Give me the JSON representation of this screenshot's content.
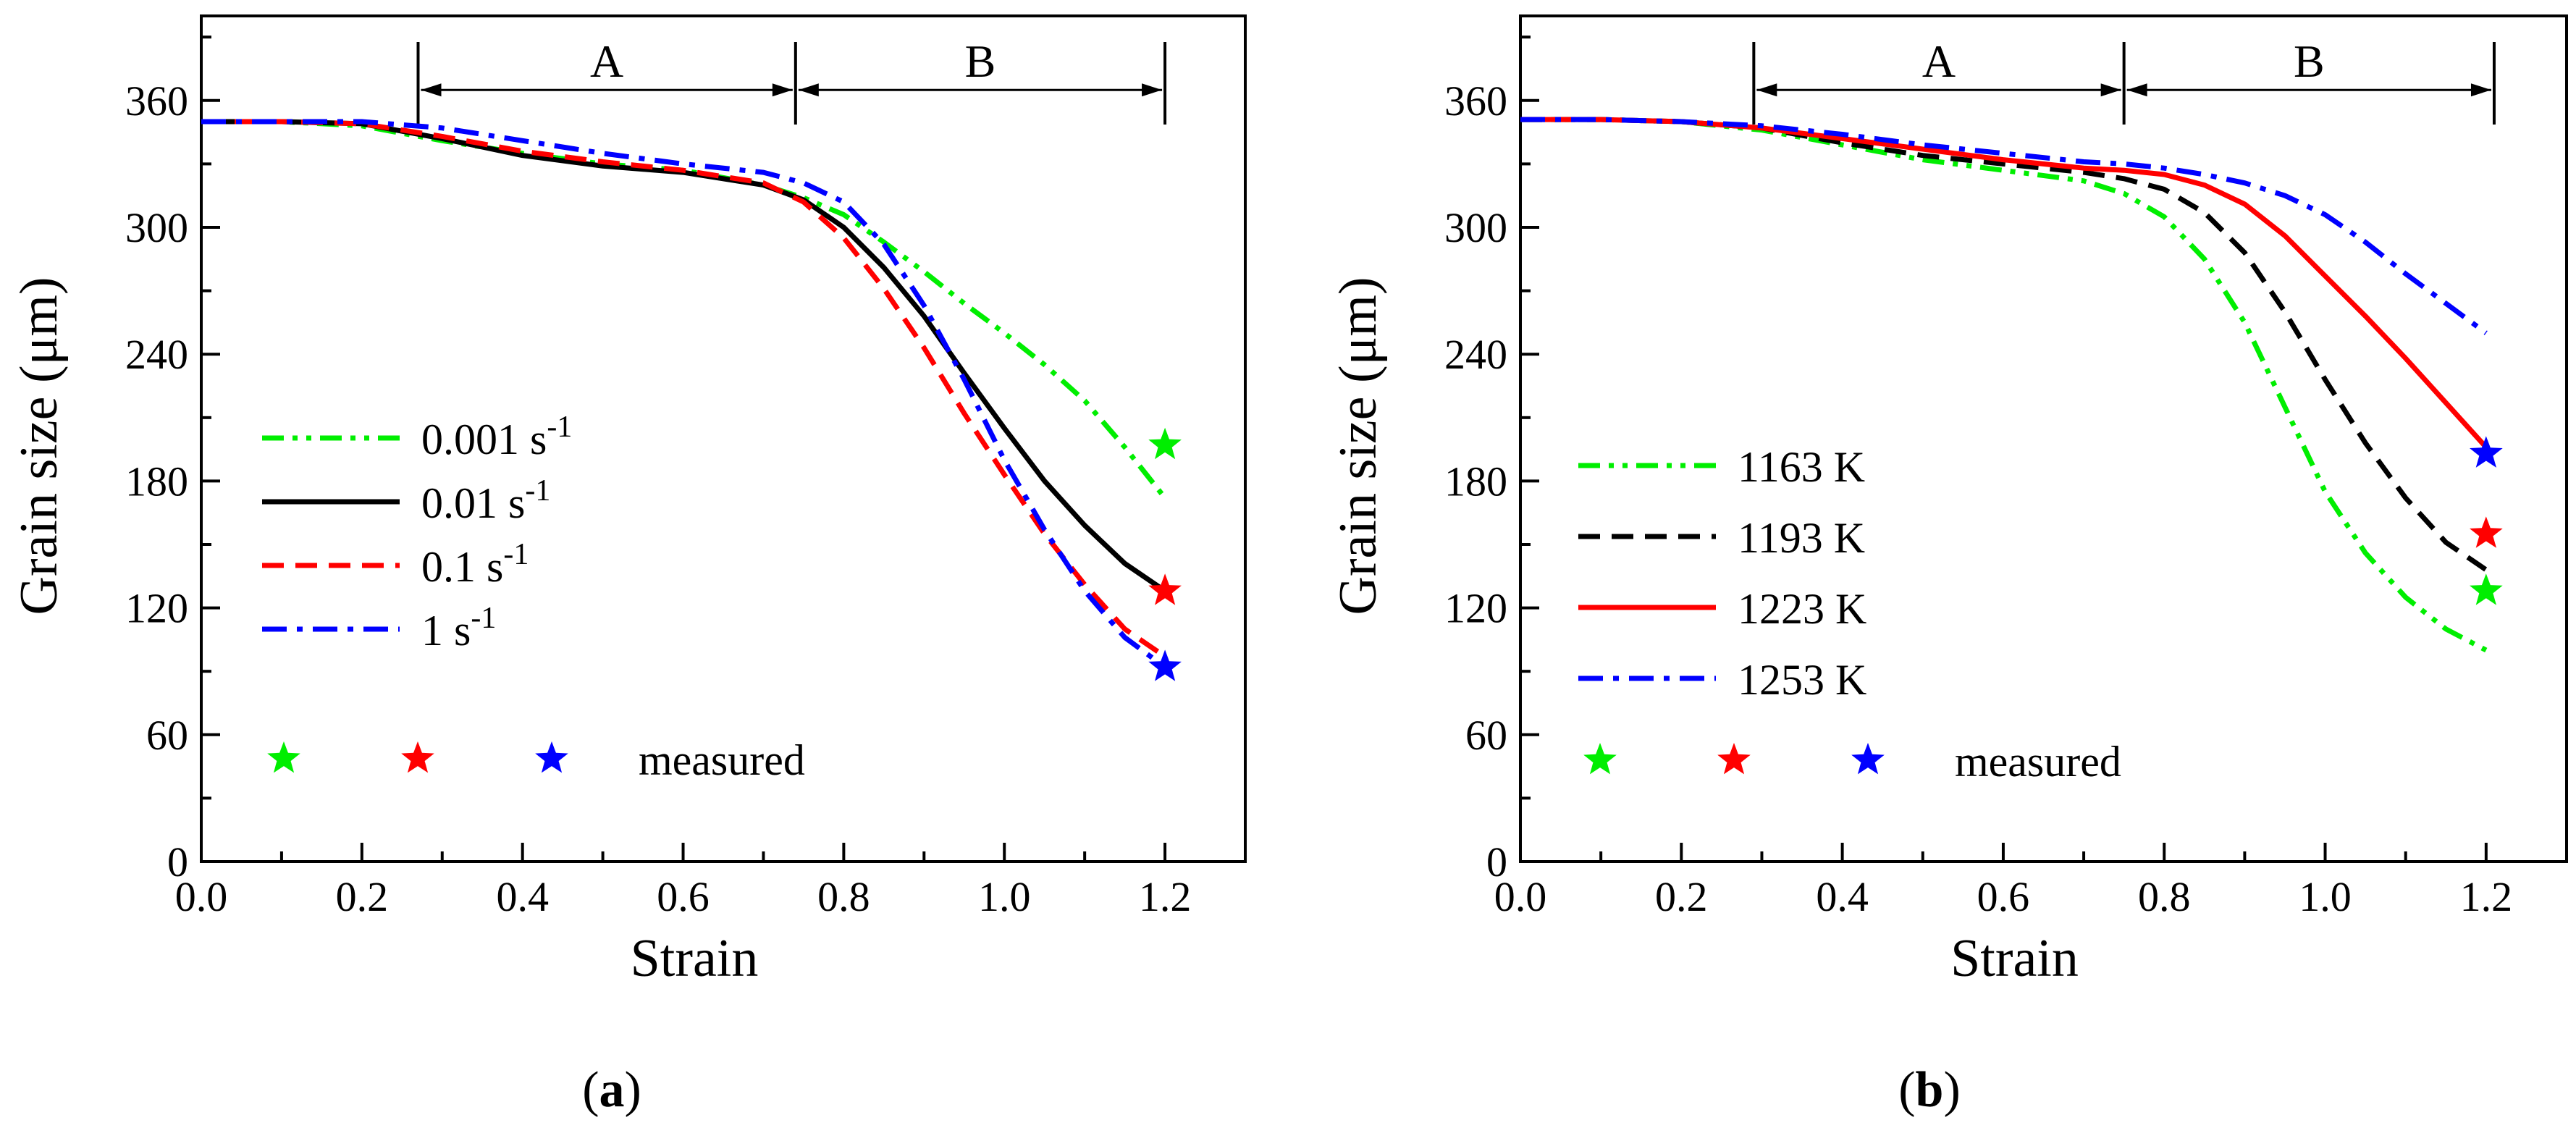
{
  "chart_data": [
    {
      "type": "line",
      "panel": "a",
      "caption": {
        "open": "(",
        "letter": "a",
        "close": ")"
      },
      "xlabel": "Strain",
      "ylabel": "Grain size (μm)",
      "xlim": [
        0.0,
        1.3
      ],
      "ylim": [
        0,
        400
      ],
      "xticks": [
        0.0,
        0.2,
        0.4,
        0.6,
        0.8,
        1.0,
        1.2
      ],
      "xtick_labels": [
        "0.0",
        "0.2",
        "0.4",
        "0.6",
        "0.8",
        "1.0",
        "1.2"
      ],
      "yticks": [
        0,
        60,
        120,
        180,
        240,
        300,
        360
      ],
      "ytick_labels": [
        "0",
        "60",
        "120",
        "180",
        "240",
        "300",
        "360"
      ],
      "regions": [
        {
          "label": "A",
          "start": 0.27,
          "end": 0.74
        },
        {
          "label": "B",
          "start": 0.74,
          "end": 1.2
        }
      ],
      "region_line_y": 365,
      "series": [
        {
          "name": "0.001 s",
          "sup": "-1",
          "color": "#00ee00",
          "dash": "dashdotdot",
          "x": [
            0,
            0.1,
            0.2,
            0.3,
            0.4,
            0.5,
            0.6,
            0.7,
            0.75,
            0.8,
            0.85,
            0.9,
            0.95,
            1.0,
            1.05,
            1.1,
            1.15,
            1.2
          ],
          "y": [
            350,
            350,
            348,
            341,
            335,
            330,
            327,
            320,
            314,
            306,
            293,
            279,
            264,
            250,
            235,
            218,
            196,
            172
          ]
        },
        {
          "name": "0.01 s",
          "sup": "-1",
          "color": "#000000",
          "dash": "solid",
          "x": [
            0,
            0.1,
            0.2,
            0.3,
            0.4,
            0.5,
            0.6,
            0.7,
            0.75,
            0.8,
            0.85,
            0.9,
            0.95,
            1.0,
            1.05,
            1.1,
            1.15,
            1.2
          ],
          "y": [
            350,
            350,
            349,
            342,
            334,
            329,
            326,
            320,
            313,
            300,
            281,
            258,
            231,
            205,
            180,
            159,
            141,
            128
          ]
        },
        {
          "name": "0.1 s",
          "sup": "-1",
          "color": "#ff0000",
          "dash": "dashed",
          "x": [
            0,
            0.1,
            0.2,
            0.3,
            0.4,
            0.5,
            0.6,
            0.7,
            0.75,
            0.8,
            0.85,
            0.9,
            0.95,
            1.0,
            1.05,
            1.1,
            1.15,
            1.2
          ],
          "y": [
            350,
            350,
            349,
            343,
            336,
            331,
            327,
            321,
            312,
            295,
            271,
            243,
            212,
            183,
            155,
            131,
            110,
            97
          ]
        },
        {
          "name": "1 s",
          "sup": "-1",
          "color": "#0000ff",
          "dash": "dashdot",
          "x": [
            0,
            0.1,
            0.2,
            0.3,
            0.4,
            0.5,
            0.6,
            0.7,
            0.75,
            0.8,
            0.85,
            0.9,
            0.95,
            1.0,
            1.05,
            1.1,
            1.15,
            1.2
          ],
          "y": [
            350,
            350,
            350,
            347,
            341,
            335,
            330,
            326,
            321,
            312,
            292,
            263,
            228,
            190,
            157,
            128,
            106,
            92
          ]
        }
      ],
      "measured": {
        "label": "measured",
        "points": [
          {
            "x": 1.2,
            "y": 197,
            "color": "#00ee00"
          },
          {
            "x": 1.2,
            "y": 128,
            "color": "#ff0000"
          },
          {
            "x": 1.2,
            "y": 92,
            "color": "#0000ff"
          }
        ]
      }
    },
    {
      "type": "line",
      "panel": "b",
      "caption": {
        "open": "(",
        "letter": "b",
        "close": ")"
      },
      "xlabel": "Strain",
      "ylabel": "Grain size (μm)",
      "xlim": [
        0.0,
        1.3
      ],
      "ylim": [
        0,
        400
      ],
      "xticks": [
        0.0,
        0.2,
        0.4,
        0.6,
        0.8,
        1.0,
        1.2
      ],
      "xtick_labels": [
        "0.0",
        "0.2",
        "0.4",
        "0.6",
        "0.8",
        "1.0",
        "1.2"
      ],
      "yticks": [
        0,
        60,
        120,
        180,
        240,
        300,
        360
      ],
      "ytick_labels": [
        "0",
        "60",
        "120",
        "180",
        "240",
        "300",
        "360"
      ],
      "regions": [
        {
          "label": "A",
          "start": 0.29,
          "end": 0.75
        },
        {
          "label": "B",
          "start": 0.75,
          "end": 1.21
        }
      ],
      "region_line_y": 365,
      "series": [
        {
          "name": "1163 K",
          "sup": "",
          "color": "#00ee00",
          "dash": "dashdotdot",
          "x": [
            0,
            0.1,
            0.2,
            0.3,
            0.4,
            0.5,
            0.6,
            0.7,
            0.75,
            0.8,
            0.85,
            0.9,
            0.95,
            1.0,
            1.05,
            1.1,
            1.15,
            1.2
          ],
          "y": [
            351,
            351,
            350,
            346,
            339,
            332,
            327,
            322,
            316,
            305,
            285,
            255,
            215,
            175,
            146,
            125,
            110,
            100
          ]
        },
        {
          "name": "1193 K",
          "sup": "",
          "color": "#000000",
          "dash": "dashed",
          "x": [
            0,
            0.1,
            0.2,
            0.3,
            0.4,
            0.5,
            0.6,
            0.7,
            0.75,
            0.8,
            0.85,
            0.9,
            0.95,
            1.0,
            1.05,
            1.1,
            1.15,
            1.2
          ],
          "y": [
            351,
            351,
            350,
            347,
            340,
            334,
            330,
            326,
            323,
            318,
            307,
            288,
            260,
            228,
            198,
            172,
            151,
            138
          ]
        },
        {
          "name": "1223 K",
          "sup": "",
          "color": "#ff0000",
          "dash": "solid",
          "x": [
            0,
            0.1,
            0.2,
            0.3,
            0.4,
            0.5,
            0.6,
            0.7,
            0.75,
            0.8,
            0.85,
            0.9,
            0.95,
            1.0,
            1.05,
            1.1,
            1.15,
            1.2
          ],
          "y": [
            351,
            351,
            350,
            347,
            342,
            337,
            332,
            328,
            327,
            325,
            320,
            311,
            296,
            277,
            258,
            238,
            217,
            196
          ]
        },
        {
          "name": "1253 K",
          "sup": "",
          "color": "#0000ff",
          "dash": "dashdot",
          "x": [
            0,
            0.1,
            0.2,
            0.3,
            0.4,
            0.5,
            0.6,
            0.7,
            0.75,
            0.8,
            0.85,
            0.9,
            0.95,
            1.0,
            1.05,
            1.1,
            1.15,
            1.2
          ],
          "y": [
            351,
            351,
            350,
            348,
            344,
            339,
            335,
            331,
            330,
            328,
            325,
            321,
            315,
            306,
            293,
            278,
            264,
            250
          ]
        }
      ],
      "measured": {
        "label": "measured",
        "points": [
          {
            "x": 1.2,
            "y": 128,
            "color": "#00ee00"
          },
          {
            "x": 1.2,
            "y": 155,
            "color": "#ff0000"
          },
          {
            "x": 1.2,
            "y": 193,
            "color": "#0000ff"
          }
        ]
      }
    }
  ]
}
